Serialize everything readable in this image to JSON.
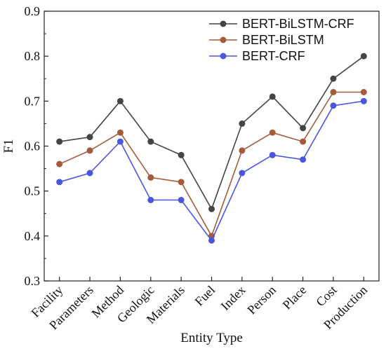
{
  "chart_data": {
    "type": "line",
    "title": "",
    "xlabel": "Entity Type",
    "ylabel": "F1",
    "ylim": [
      0.3,
      0.9
    ],
    "yticks": [
      "0.3",
      "0.4",
      "0.5",
      "0.6",
      "0.7",
      "0.8",
      "0.9"
    ],
    "categories": [
      "Facility",
      "Parameters",
      "Method",
      "Geologic",
      "Materials",
      "Fuel",
      "Index",
      "Person",
      "Place",
      "Cost",
      "Production"
    ],
    "legend_position": "top-right",
    "grid": false,
    "series": [
      {
        "name": "BERT-BiLSTM-CRF",
        "color": "#444444",
        "values": [
          0.61,
          0.62,
          0.7,
          0.61,
          0.58,
          0.46,
          0.65,
          0.71,
          0.64,
          0.75,
          0.8
        ]
      },
      {
        "name": "BERT-BiLSTM",
        "color": "#a65a3c",
        "values": [
          0.56,
          0.59,
          0.63,
          0.53,
          0.52,
          0.4,
          0.59,
          0.63,
          0.61,
          0.72,
          0.72
        ]
      },
      {
        "name": "BERT-CRF",
        "color": "#4a55e0",
        "values": [
          0.52,
          0.54,
          0.61,
          0.48,
          0.48,
          0.39,
          0.54,
          0.58,
          0.57,
          0.69,
          0.7
        ]
      }
    ]
  }
}
